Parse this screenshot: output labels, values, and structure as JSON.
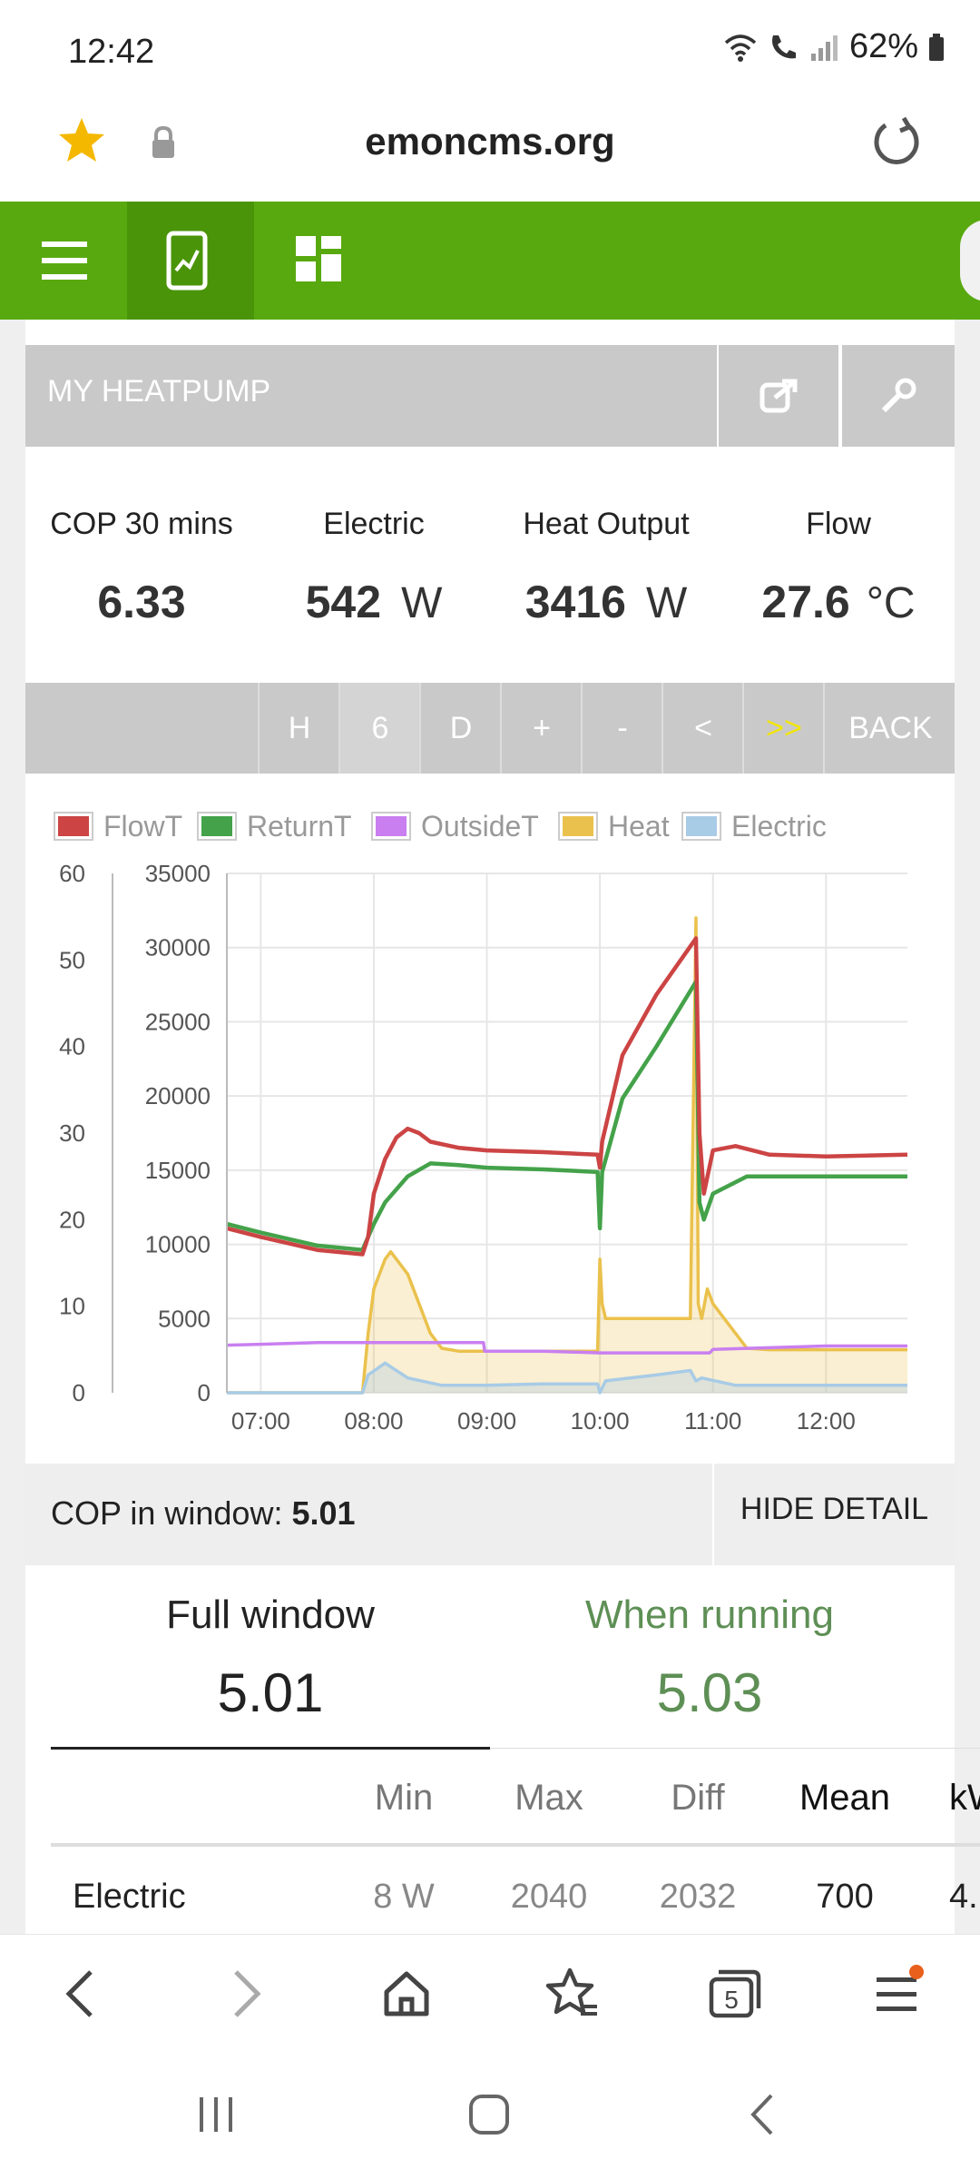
{
  "status_bar": {
    "time": "12:42",
    "battery": "62%"
  },
  "browser": {
    "url": "emoncms.org"
  },
  "panel": {
    "title": "MY HEATPUMP"
  },
  "stats": [
    {
      "label": "COP 30 mins",
      "value": "6.33",
      "unit": ""
    },
    {
      "label": "Electric",
      "value": "542",
      "unit": "W"
    },
    {
      "label": "Heat Output",
      "value": "3416",
      "unit": "W"
    },
    {
      "label": "Flow",
      "value": "27.6",
      "unit": "°C"
    }
  ],
  "toolbar": {
    "buttons": [
      "H",
      "6",
      "D",
      "+",
      "-",
      "<",
      ">>",
      "BACK"
    ]
  },
  "chart_data": {
    "type": "line",
    "legend": [
      "FlowT",
      "ReturnT",
      "OutsideT",
      "Heat",
      "Electric"
    ],
    "colors": {
      "FlowT": "#cc4444",
      "ReturnT": "#44a24a",
      "OutsideT": "#c97ff0",
      "Heat": "#eac14c",
      "Electric": "#a8cbe6"
    },
    "y_left_ticks": [
      "0",
      "10",
      "20",
      "30",
      "40",
      "50",
      "60"
    ],
    "y_right_ticks": [
      "0",
      "5000",
      "10000",
      "15000",
      "20000",
      "25000",
      "30000",
      "35000"
    ],
    "x_ticks": [
      "07:00",
      "08:00",
      "09:00",
      "10:00",
      "11:00",
      "12:00"
    ],
    "ylim_left": [
      0,
      60
    ],
    "ylim_right": [
      0,
      35000
    ],
    "xlim_hours": [
      6.7,
      12.72
    ],
    "series": [
      {
        "name": "FlowT",
        "axis": "left",
        "x": [
          6.7,
          7.0,
          7.5,
          7.9,
          7.95,
          8.0,
          8.1,
          8.2,
          8.3,
          8.4,
          8.5,
          8.75,
          9.0,
          9.5,
          9.98,
          10.0,
          10.02,
          10.2,
          10.5,
          10.85,
          10.88,
          10.92,
          11.0,
          11.2,
          11.5,
          12.0,
          12.72
        ],
        "y": [
          19.0,
          18.0,
          16.5,
          16.0,
          18.0,
          23.0,
          27.0,
          29.5,
          30.5,
          30.0,
          29.0,
          28.3,
          28.0,
          27.8,
          27.5,
          26.0,
          29.0,
          39.0,
          46.0,
          52.5,
          30.0,
          23.0,
          28.0,
          28.5,
          27.5,
          27.3,
          27.5
        ]
      },
      {
        "name": "ReturnT",
        "axis": "left",
        "x": [
          6.7,
          7.0,
          7.5,
          7.9,
          7.95,
          8.0,
          8.1,
          8.3,
          8.5,
          8.75,
          9.0,
          9.5,
          9.98,
          10.0,
          10.02,
          10.2,
          10.5,
          10.85,
          10.88,
          10.92,
          11.0,
          11.3,
          11.6,
          12.0,
          12.72
        ],
        "y": [
          19.5,
          18.5,
          17.0,
          16.5,
          18.0,
          19.5,
          22.0,
          25.0,
          26.5,
          26.3,
          26.0,
          25.8,
          25.5,
          19.0,
          25.5,
          34.0,
          40.0,
          47.5,
          22.0,
          20.0,
          23.0,
          25.0,
          25.0,
          25.0,
          25.0
        ]
      },
      {
        "name": "OutsideT",
        "axis": "left",
        "x": [
          6.7,
          7.0,
          7.5,
          8.0,
          8.5,
          8.97,
          8.98,
          9.5,
          10.0,
          10.5,
          10.97,
          11.0,
          11.5,
          12.0,
          12.72
        ],
        "y": [
          5.5,
          5.6,
          5.8,
          5.8,
          5.8,
          5.8,
          4.8,
          4.8,
          4.6,
          4.6,
          4.6,
          5.0,
          5.2,
          5.4,
          5.4
        ]
      },
      {
        "name": "Heat",
        "axis": "right",
        "x": [
          6.7,
          7.9,
          7.95,
          8.0,
          8.1,
          8.15,
          8.3,
          8.4,
          8.5,
          8.6,
          8.75,
          9.0,
          9.5,
          9.98,
          10.0,
          10.02,
          10.05,
          10.2,
          10.5,
          10.8,
          10.85,
          10.87,
          10.9,
          10.95,
          11.0,
          11.1,
          11.3,
          11.5,
          11.7,
          12.0,
          12.72
        ],
        "y": [
          0,
          0,
          4000,
          7000,
          9000,
          9500,
          8000,
          6000,
          4000,
          3000,
          2800,
          2800,
          2800,
          2800,
          9000,
          6000,
          5000,
          5000,
          5000,
          5000,
          32000,
          6000,
          5000,
          7000,
          6000,
          5000,
          3000,
          2900,
          2900,
          2900,
          2900
        ]
      },
      {
        "name": "Electric",
        "axis": "right",
        "x": [
          6.7,
          7.9,
          7.95,
          8.1,
          8.3,
          8.6,
          9.0,
          9.5,
          9.98,
          10.0,
          10.05,
          10.5,
          10.8,
          10.85,
          10.9,
          11.2,
          11.6,
          12.0,
          12.72
        ],
        "y": [
          0,
          0,
          1200,
          2000,
          1000,
          500,
          500,
          600,
          600,
          0,
          800,
          1200,
          1500,
          800,
          1000,
          500,
          500,
          500,
          500
        ]
      }
    ]
  },
  "cop_window": {
    "label": "COP in window:",
    "value": "5.01",
    "hide_label": "HIDE DETAIL"
  },
  "summary_tabs": {
    "full": {
      "label": "Full window",
      "value": "5.01"
    },
    "running": {
      "label": "When running",
      "value": "5.03"
    }
  },
  "table": {
    "headers": [
      "Min",
      "Max",
      "Diff",
      "Mean",
      "kW"
    ],
    "row": {
      "label": "Electric",
      "cells": [
        "8 W",
        "2040",
        "2032",
        "700",
        "4."
      ]
    }
  }
}
